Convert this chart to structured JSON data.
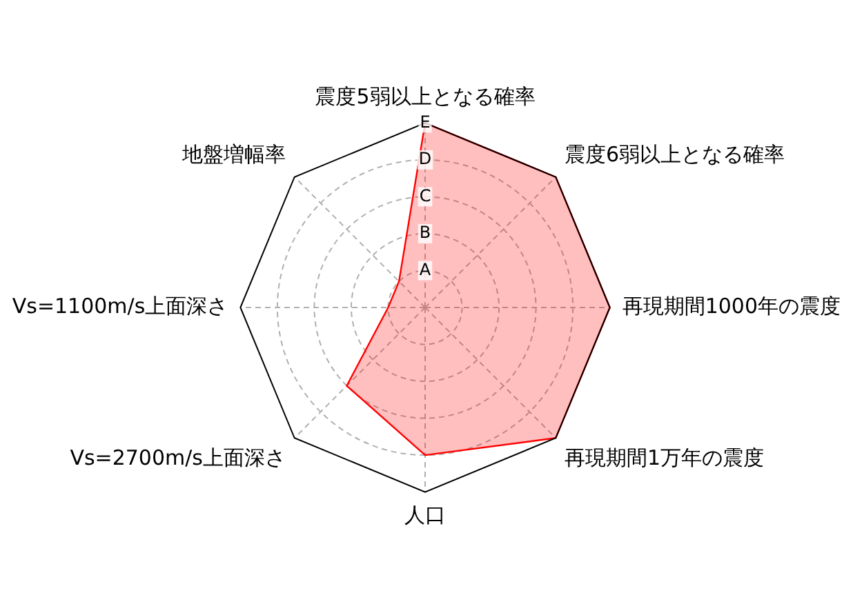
{
  "chart_data": {
    "type": "radar",
    "categories": [
      "震度5弱以上となる確率",
      "震度6弱以上となる確率",
      "再現期間1000年の震度",
      "再現期間1万年の震度",
      "人口",
      "Vs=2700m/s上面深さ",
      "Vs=1100m/s上面深さ",
      "地盤増幅率"
    ],
    "series": [
      {
        "color": "#ff0000",
        "values": [
          5,
          5,
          5,
          5,
          4,
          3,
          1,
          1
        ]
      }
    ],
    "ylim": [
      0,
      5
    ],
    "yticks": [
      {
        "value": 1,
        "label": "A"
      },
      {
        "value": 2,
        "label": "B"
      },
      {
        "value": 3,
        "label": "C"
      },
      {
        "value": 4,
        "label": "D"
      },
      {
        "value": 5,
        "label": "E"
      }
    ],
    "grid": true,
    "legend": false,
    "marker": "none",
    "line_style": "solid"
  }
}
